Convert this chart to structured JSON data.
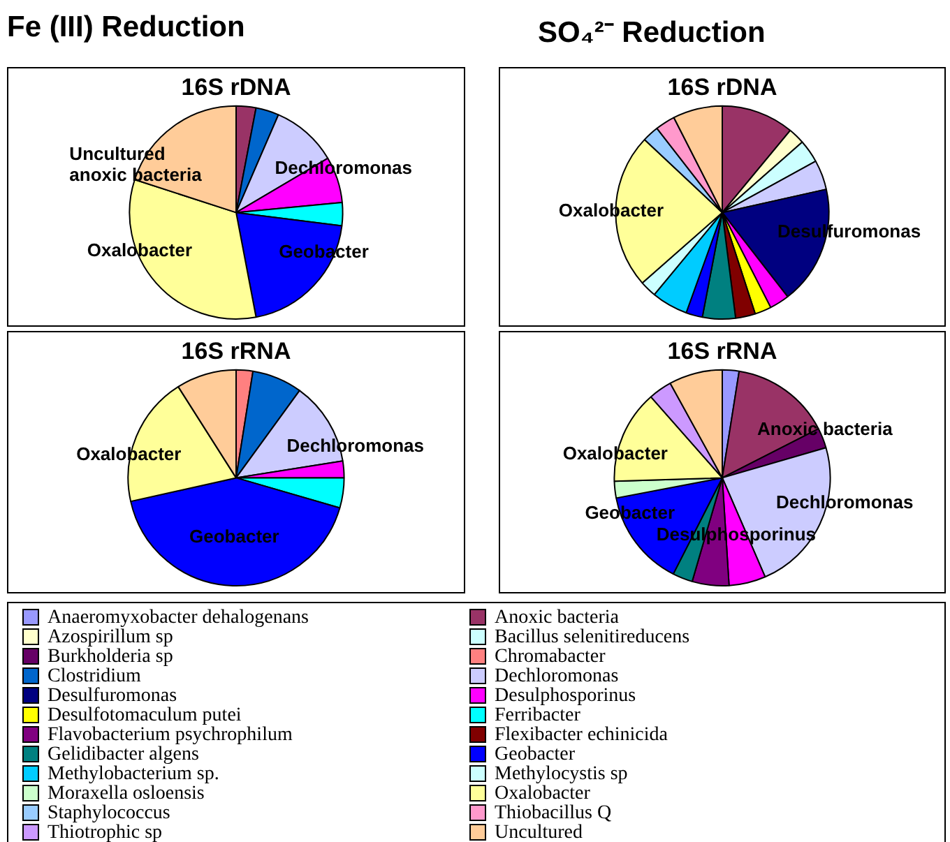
{
  "chart_data": [
    {
      "type": "pie",
      "subtitle": "Fe (III) Reduction",
      "title": "16S rDNA",
      "categories": [
        null,
        null,
        "Dechloromonas",
        null,
        null,
        "Geobacter",
        "Oxalobacter",
        "Uncultured anoxic bacteria"
      ],
      "colors": [
        "#993366",
        "#0066cc",
        "#ccccff",
        "#ff00ff",
        "#00ffff",
        "#0000ff",
        "#ffff99",
        "#ffcc99"
      ],
      "values": [
        3,
        3.5,
        10,
        7,
        3.5,
        20,
        33,
        20
      ]
    },
    {
      "type": "pie",
      "subtitle": "SO₄²⁻ Reduction",
      "title": "16S rDNA",
      "categories": [
        null,
        null,
        null,
        null,
        "Desulfuromonas",
        null,
        null,
        null,
        null,
        null,
        null,
        null,
        "Oxalobacter",
        null,
        null,
        null
      ],
      "colors": [
        "#993366",
        "#ffffcc",
        "#ccffff",
        "#ccccff",
        "#000080",
        "#ff00ff",
        "#ffff00",
        "#800000",
        "#008080",
        "#0000ff",
        "#00ccff",
        "#ccffff",
        "#ffff99",
        "#99ccff",
        "#ff99cc",
        "#ffcc99"
      ],
      "values": [
        11,
        2.5,
        3.5,
        4.5,
        18,
        3,
        2.5,
        3,
        5,
        2.5,
        5.5,
        2.5,
        23.5,
        2.5,
        3,
        7.5
      ]
    },
    {
      "type": "pie",
      "title": "16S rRNA",
      "categories": [
        null,
        null,
        "Dechloromonas",
        null,
        null,
        "Geobacter",
        "Oxalobacter",
        null
      ],
      "colors": [
        "#ff8080",
        "#0066cc",
        "#ccccff",
        "#ff00ff",
        "#00ffff",
        "#0000ff",
        "#ffff99",
        "#ffcc99"
      ],
      "values": [
        2.5,
        7.5,
        12.5,
        2.5,
        4.5,
        42,
        19.5,
        9
      ]
    },
    {
      "type": "pie",
      "title": "16S rRNA",
      "legend": "bottom",
      "categories": [
        "Anaeromyxobacter dehalogenans",
        "Anoxic bacteria",
        "Azospirillum sp",
        "Bacillus selenitireducens",
        "Burkholderia sp",
        "Chromabacter",
        "Clostridium",
        "Dechloromonas",
        "Desulfuromonas",
        "Desulphosporinus",
        "Desulfotomaculum putei",
        "Ferribacter",
        "Flavobacterium psychrophilum",
        "Flexibacter echinicida",
        "Gelidibacter algens",
        "Geobacter",
        "Methylobacterium sp.",
        "Methylocystis sp",
        "Moraxella osloensis",
        "Oxalobacter",
        "Staphylococcus",
        "Thiobacillus Q",
        "Thiotrophic sp",
        "Uncultured"
      ],
      "colors": [
        "#9999ff",
        "#993366",
        "#ffffcc",
        "#ccffff",
        "#660066",
        "#ff8080",
        "#0066cc",
        "#ccccff",
        "#000080",
        "#ff00ff",
        "#ffff00",
        "#00ffff",
        "#800080",
        "#800000",
        "#008080",
        "#0000ff",
        "#00ccff",
        "#ccffff",
        "#ccffcc",
        "#ffff99",
        "#99ccff",
        "#ff99cc",
        "#cc99ff",
        "#ffcc99"
      ],
      "values": [
        2.5,
        15,
        null,
        null,
        3,
        null,
        null,
        23,
        null,
        5.5,
        null,
        null,
        5.5,
        null,
        3,
        14.5,
        null,
        null,
        2.5,
        14,
        null,
        null,
        3.5,
        8
      ],
      "value_labels": [
        null,
        "Anoxic bacteria",
        null,
        null,
        null,
        null,
        null,
        "Dechloromonas",
        null,
        "Desulphosporinus",
        null,
        null,
        null,
        null,
        null,
        "Geobacter",
        null,
        null,
        null,
        "Oxalobacter",
        null,
        null,
        null,
        null
      ]
    }
  ]
}
